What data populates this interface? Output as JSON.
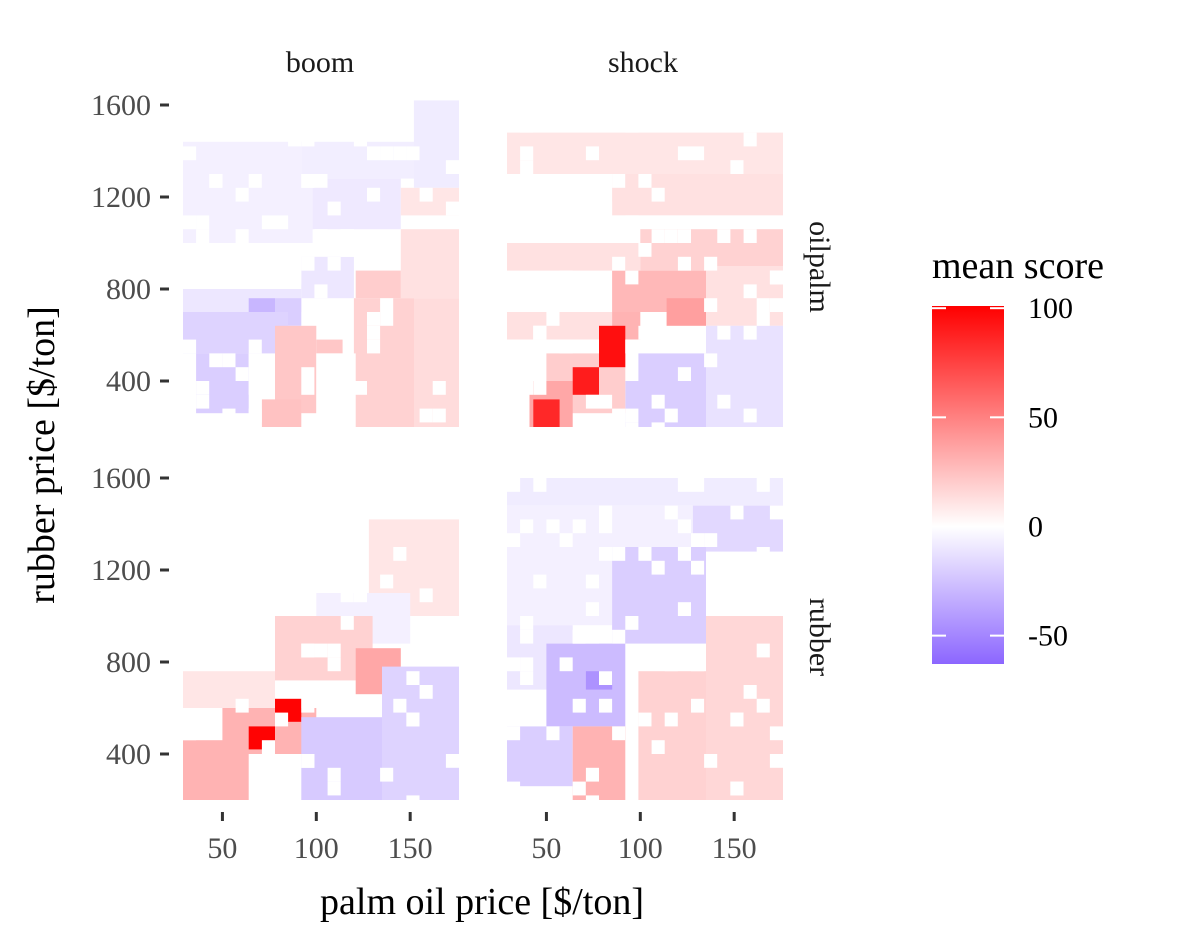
{
  "chart_data": {
    "type": "heatmap",
    "facet_columns": [
      "boom",
      "shock"
    ],
    "facet_rows": [
      "oilpalm",
      "rubber"
    ],
    "xlabel": "palm oil price [$/ton]",
    "ylabel": "rubber price [$/ton]",
    "x_ticks": [
      50,
      100,
      150
    ],
    "y_ticks": [
      400,
      800,
      1200,
      1600
    ],
    "x_range": [
      29,
      176
    ],
    "y_range": [
      200,
      1600
    ],
    "cell_width_x": 7,
    "cell_height_y": 60,
    "legend": {
      "title": "mean score",
      "ticks": [
        100,
        50,
        0,
        -50
      ],
      "min": -63,
      "max": 101,
      "colors": {
        "low": "#8c66ff",
        "mid": "#ffffff",
        "high": "#ff0000"
      },
      "placement": "right"
    },
    "grid": false,
    "panels": [
      {
        "col": "boom",
        "row": "oilpalm",
        "regions": [
          {
            "x": [
              29,
              176
            ],
            "y": [
              1440,
              1600
            ],
            "v": 0
          },
          {
            "x": [
              29,
              92
            ],
            "y": [
              1300,
              1440
            ],
            "v": -6
          },
          {
            "x": [
              92,
              152
            ],
            "y": [
              1280,
              1440
            ],
            "v": -7
          },
          {
            "x": [
              152,
              176
            ],
            "y": [
              1240,
              1620
            ],
            "v": -8
          },
          {
            "x": [
              29,
              98
            ],
            "y": [
              1000,
              1300
            ],
            "v": -6
          },
          {
            "x": [
              98,
              145
            ],
            "y": [
              1060,
              1280
            ],
            "v": -9
          },
          {
            "x": [
              145,
              176
            ],
            "y": [
              1120,
              1240
            ],
            "v": 10
          },
          {
            "x": [
              145,
              176
            ],
            "y": [
              760,
              1060
            ],
            "v": 12
          },
          {
            "x": [
              152,
              176
            ],
            "y": [
              200,
              760
            ],
            "v": 14
          },
          {
            "x": [
              120,
              152
            ],
            "y": [
              200,
              760
            ],
            "v": 18
          },
          {
            "x": [
              121,
              145
            ],
            "y": [
              760,
              880
            ],
            "v": 20
          },
          {
            "x": [
              92,
              120
            ],
            "y": [
              760,
              940
            ],
            "v": -10
          },
          {
            "x": [
              29,
              92
            ],
            "y": [
              700,
              800
            ],
            "v": -10
          },
          {
            "x": [
              64,
              78
            ],
            "y": [
              700,
              760
            ],
            "v": -30
          },
          {
            "x": [
              78,
              92
            ],
            "y": [
              640,
              760
            ],
            "v": -20
          },
          {
            "x": [
              29,
              85
            ],
            "y": [
              520,
              700
            ],
            "v": -18
          },
          {
            "x": [
              36,
              64
            ],
            "y": [
              260,
              520
            ],
            "v": -20
          },
          {
            "x": [
              78,
              100
            ],
            "y": [
              260,
              640
            ],
            "v": 22
          },
          {
            "x": [
              100,
              114
            ],
            "y": [
              520,
              580
            ],
            "v": 22
          },
          {
            "x": [
              71,
              92
            ],
            "y": [
              200,
              320
            ],
            "v": 24
          },
          {
            "x": [
              100,
              121
            ],
            "y": [
              200,
              520
            ],
            "v": 0
          }
        ]
      },
      {
        "col": "shock",
        "row": "oilpalm",
        "regions": [
          {
            "x": [
              29,
              176
            ],
            "y": [
              1480,
              1600
            ],
            "v": 0
          },
          {
            "x": [
              29,
              176
            ],
            "y": [
              1300,
              1480
            ],
            "v": 10
          },
          {
            "x": [
              29,
              85
            ],
            "y": [
              1120,
              1300
            ],
            "v": 0
          },
          {
            "x": [
              85,
              176
            ],
            "y": [
              1120,
              1300
            ],
            "v": 12
          },
          {
            "x": [
              29,
              176
            ],
            "y": [
              1000,
              1120
            ],
            "v": 0
          },
          {
            "x": [
              29,
              100
            ],
            "y": [
              880,
              1000
            ],
            "v": 12
          },
          {
            "x": [
              100,
              176
            ],
            "y": [
              880,
              1060
            ],
            "v": 18
          },
          {
            "x": [
              85,
              135
            ],
            "y": [
              700,
              880
            ],
            "v": 28
          },
          {
            "x": [
              114,
              135
            ],
            "y": [
              640,
              760
            ],
            "v": 38
          },
          {
            "x": [
              135,
              176
            ],
            "y": [
              640,
              900
            ],
            "v": 12
          },
          {
            "x": [
              135,
              176
            ],
            "y": [
              200,
              640
            ],
            "v": -12
          },
          {
            "x": [
              92,
              135
            ],
            "y": [
              200,
              520
            ],
            "v": -20
          },
          {
            "x": [
              29,
              85
            ],
            "y": [
              580,
              700
            ],
            "v": 12
          },
          {
            "x": [
              85,
              100
            ],
            "y": [
              580,
              700
            ],
            "v": 30
          },
          {
            "x": [
              29,
              99
            ],
            "y": [
              400,
              580
            ],
            "v": 0
          },
          {
            "x": [
              50,
              92
            ],
            "y": [
              260,
              520
            ],
            "v": 20
          },
          {
            "x": [
              41,
              64
            ],
            "y": [
              200,
              400
            ],
            "v": 35
          },
          {
            "x": [
              64,
              78
            ],
            "y": [
              340,
              460
            ],
            "v": 90
          },
          {
            "x": [
              78,
              92
            ],
            "y": [
              460,
              640
            ],
            "v": 95
          },
          {
            "x": [
              43,
              57
            ],
            "y": [
              200,
              320
            ],
            "v": 85
          }
        ]
      },
      {
        "col": "boom",
        "row": "rubber",
        "regions": [
          {
            "x": [
              29,
              176
            ],
            "y": [
              1300,
              1600
            ],
            "v": 0
          },
          {
            "x": [
              128,
              176
            ],
            "y": [
              1000,
              1420
            ],
            "v": 10
          },
          {
            "x": [
              100,
              150
            ],
            "y": [
              880,
              1100
            ],
            "v": -6
          },
          {
            "x": [
              78,
              130
            ],
            "y": [
              720,
              1000
            ],
            "v": 18
          },
          {
            "x": [
              121,
              145
            ],
            "y": [
              660,
              860
            ],
            "v": 35
          },
          {
            "x": [
              29,
              78
            ],
            "y": [
              600,
              760
            ],
            "v": 10
          },
          {
            "x": [
              50,
              100
            ],
            "y": [
              400,
              600
            ],
            "v": 30
          },
          {
            "x": [
              29,
              64
            ],
            "y": [
              200,
              460
            ],
            "v": 30
          },
          {
            "x": [
              64,
              78
            ],
            "y": [
              420,
              520
            ],
            "v": 100
          },
          {
            "x": [
              78,
              92
            ],
            "y": [
              540,
              640
            ],
            "v": 100
          },
          {
            "x": [
              92,
              135
            ],
            "y": [
              200,
              560
            ],
            "v": -22
          },
          {
            "x": [
              135,
              176
            ],
            "y": [
              200,
              780
            ],
            "v": -18
          }
        ]
      },
      {
        "col": "shock",
        "row": "rubber",
        "regions": [
          {
            "x": [
              29,
              176
            ],
            "y": [
              1480,
              1600
            ],
            "v": -8
          },
          {
            "x": [
              29,
              128
            ],
            "y": [
              1300,
              1480
            ],
            "v": -6
          },
          {
            "x": [
              128,
              176
            ],
            "y": [
              1280,
              1480
            ],
            "v": -16
          },
          {
            "x": [
              29,
              85
            ],
            "y": [
              960,
              1300
            ],
            "v": -6
          },
          {
            "x": [
              85,
              135
            ],
            "y": [
              880,
              1300
            ],
            "v": -20
          },
          {
            "x": [
              135,
              176
            ],
            "y": [
              880,
              1160
            ],
            "v": 0
          },
          {
            "x": [
              29,
              64
            ],
            "y": [
              680,
              960
            ],
            "v": -10
          },
          {
            "x": [
              50,
              92
            ],
            "y": [
              520,
              880
            ],
            "v": -28
          },
          {
            "x": [
              71,
              85
            ],
            "y": [
              680,
              760
            ],
            "v": -45
          },
          {
            "x": [
              29,
              64
            ],
            "y": [
              260,
              520
            ],
            "v": -20
          },
          {
            "x": [
              64,
              92
            ],
            "y": [
              200,
              520
            ],
            "v": 30
          },
          {
            "x": [
              99,
              135
            ],
            "y": [
              200,
              760
            ],
            "v": 18
          },
          {
            "x": [
              135,
              176
            ],
            "y": [
              200,
              1000
            ],
            "v": 16
          }
        ]
      }
    ]
  }
}
